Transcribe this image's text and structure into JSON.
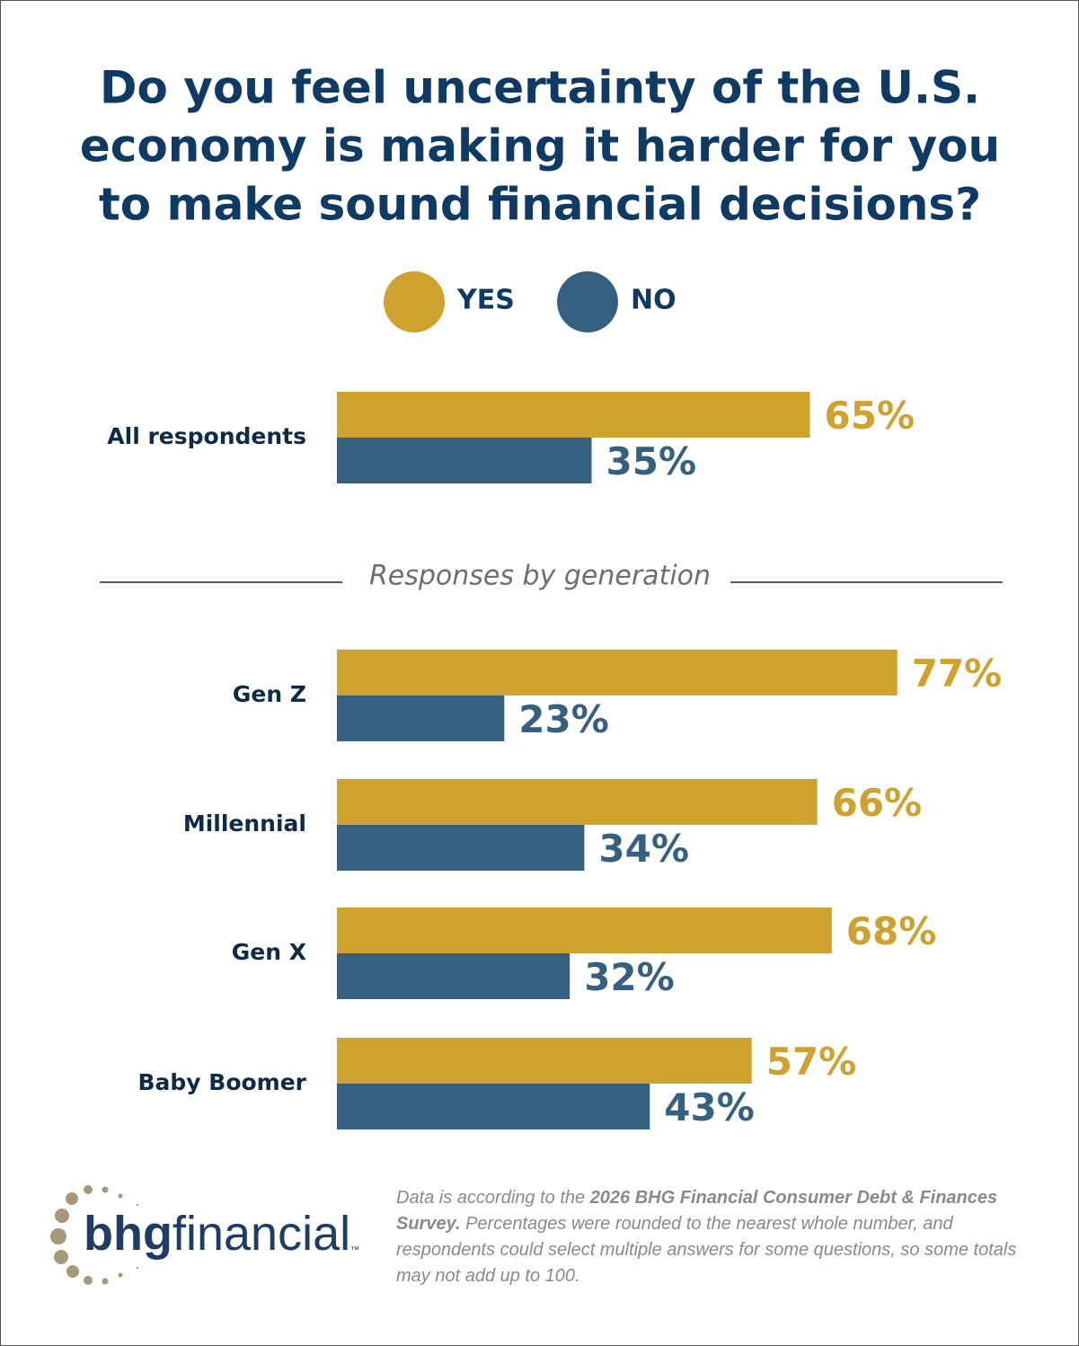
{
  "chart_data": {
    "type": "bar",
    "title_lines": [
      "Do you feel uncertainty of the U.S.",
      "economy is making it harder for you",
      "to make sound financial decisions?"
    ],
    "section_label": "Responses by generation",
    "categories": [
      "All respondents",
      "Gen Z",
      "Millennial",
      "Gen X",
      "Baby Boomer"
    ],
    "series": [
      {
        "name": "YES",
        "color": "#cfa22f",
        "values": [
          65,
          77,
          66,
          68,
          57
        ],
        "value_labels": [
          "65%",
          "77%",
          "66%",
          "68%",
          "57%"
        ]
      },
      {
        "name": "NO",
        "color": "#36607f",
        "values": [
          35,
          23,
          34,
          32,
          43
        ],
        "value_labels": [
          "35%",
          "23%",
          "34%",
          "32%",
          "43%"
        ]
      }
    ]
  },
  "footnote": [
    "Data is according to the ",
    "2026 BHG Financial Consumer Debt & Finances Survey.",
    " Percentages were rounded to the nearest whole number, and respondents could select multiple answers for some questions, so some totals may not add up to 100."
  ],
  "logo": {
    "bold": "bhg",
    "light": "financial",
    "mark": "™"
  }
}
